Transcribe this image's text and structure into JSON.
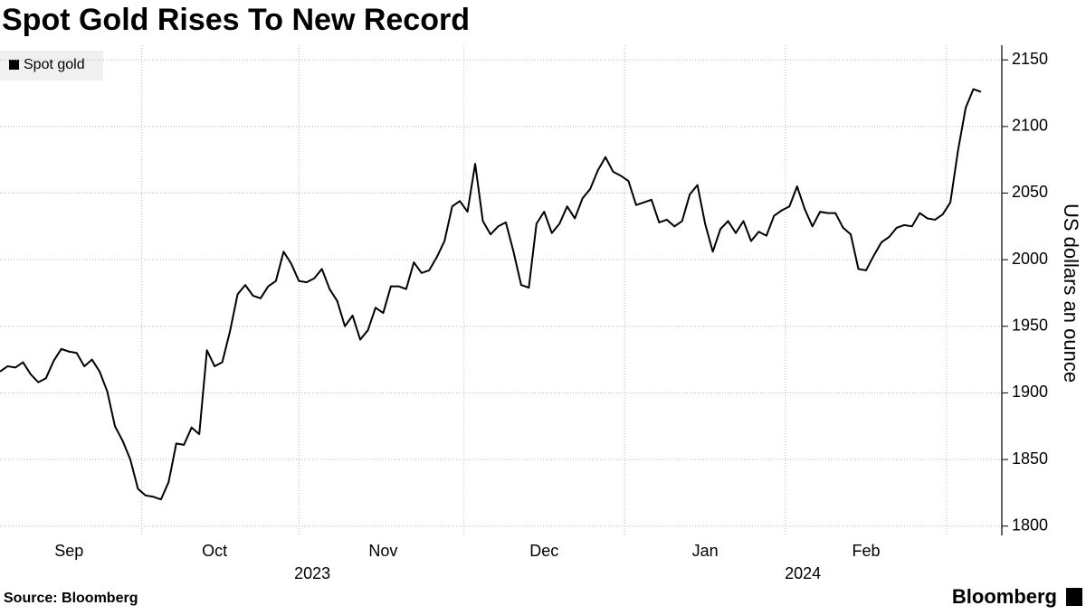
{
  "chart_data": {
    "type": "line",
    "title": "Spot Gold Rises To New Record",
    "y_axis_label": "US dollars an ounce",
    "source": "Source: Bloomberg",
    "brand": "Bloomberg",
    "years": [
      "2023",
      "2024"
    ],
    "categories": [
      null,
      null,
      null,
      null,
      null,
      null,
      null,
      null,
      null,
      "Sep",
      null,
      null,
      null,
      null,
      null,
      null,
      null,
      null,
      null,
      null,
      null,
      null,
      null,
      null,
      null,
      null,
      null,
      null,
      "Oct",
      null,
      null,
      null,
      null,
      null,
      null,
      null,
      null,
      null,
      null,
      null,
      null,
      null,
      null,
      null,
      null,
      null,
      null,
      null,
      null,
      null,
      "Nov",
      null,
      null,
      null,
      null,
      null,
      null,
      null,
      null,
      null,
      null,
      null,
      null,
      null,
      null,
      null,
      null,
      null,
      null,
      null,
      null,
      "Dec",
      null,
      null,
      null,
      null,
      null,
      null,
      null,
      null,
      null,
      null,
      null,
      null,
      null,
      null,
      null,
      null,
      null,
      null,
      null,
      null,
      "Jan",
      null,
      null,
      null,
      null,
      null,
      null,
      null,
      null,
      null,
      null,
      null,
      null,
      null,
      null,
      null,
      null,
      null,
      null,
      null,
      null,
      "Feb",
      null,
      null,
      null,
      null,
      null,
      null,
      null,
      null,
      null,
      null,
      null,
      null,
      null,
      null,
      null
    ],
    "series": [
      {
        "name": "Spot gold",
        "color": "#000000",
        "values": [
          1916,
          1920,
          1919,
          1923,
          1914,
          1908,
          1911,
          1924,
          1933,
          1931,
          1930,
          1920,
          1925,
          1916,
          1901,
          1875,
          1864,
          1850,
          1828,
          1823,
          1822,
          1820,
          1833,
          1862,
          1861,
          1874,
          1869,
          1932,
          1920,
          1923,
          1946,
          1974,
          1981,
          1973,
          1971,
          1980,
          1984,
          2006,
          1997,
          1984,
          1983,
          1986,
          1993,
          1978,
          1969,
          1950,
          1958,
          1940,
          1947,
          1964,
          1960,
          1980,
          1980,
          1978,
          1998,
          1990,
          1992,
          2002,
          2014,
          2040,
          2044,
          2036,
          2072,
          2029,
          2019,
          2025,
          2028,
          2006,
          1981,
          1979,
          2027,
          2036,
          2020,
          2027,
          2040,
          2031,
          2046,
          2053,
          2067,
          2077,
          2066,
          2063,
          2059,
          2041,
          2043,
          2045,
          2028,
          2030,
          2025,
          2029,
          2049,
          2056,
          2027,
          2006,
          2023,
          2029,
          2020,
          2029,
          2014,
          2021,
          2018,
          2033,
          2037,
          2040,
          2055,
          2038,
          2025,
          2036,
          2035,
          2035,
          2024,
          2019,
          1993,
          1992,
          2003,
          2013,
          2017,
          2024,
          2026,
          2025,
          2035,
          2031,
          2030,
          2034,
          2043,
          2082,
          2114,
          2128,
          2126
        ]
      }
    ],
    "ylim": [
      1793,
      2161
    ],
    "yticks": [
      1800,
      1850,
      1900,
      1950,
      2000,
      2050,
      2100,
      2150
    ],
    "grid": true
  }
}
